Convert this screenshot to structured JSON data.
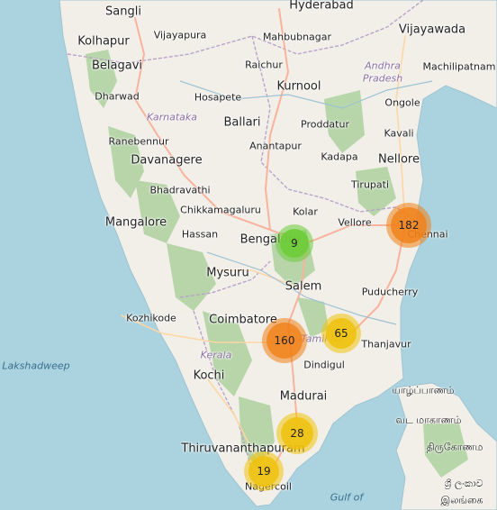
{
  "map": {
    "cities_large": [
      {
        "id": "sangli",
        "name": "Sangli"
      },
      {
        "id": "kolhapur",
        "name": "Kolhapur"
      },
      {
        "id": "belagavi",
        "name": "Belagavi"
      },
      {
        "id": "hyderabad",
        "name": "Hyderabad"
      },
      {
        "id": "vijayawada",
        "name": "Vijayawada"
      },
      {
        "id": "kurnool",
        "name": "Kurnool"
      },
      {
        "id": "ballari",
        "name": "Ballari"
      },
      {
        "id": "davanagere",
        "name": "Davanagere"
      },
      {
        "id": "nellore",
        "name": "Nellore"
      },
      {
        "id": "mangalore",
        "name": "Mangalore"
      },
      {
        "id": "bengaluru",
        "name": "Bengaluru"
      },
      {
        "id": "mysuru",
        "name": "Mysuru"
      },
      {
        "id": "salem",
        "name": "Salem"
      },
      {
        "id": "coimbatore",
        "name": "Coimbatore"
      },
      {
        "id": "kochi",
        "name": "Kochi"
      },
      {
        "id": "madurai",
        "name": "Madurai"
      },
      {
        "id": "thiruvananthapuram",
        "name": "Thiruvananthapuram"
      }
    ],
    "cities_small": [
      {
        "id": "vijayapura",
        "name": "Vijayapura"
      },
      {
        "id": "mahbubnagar",
        "name": "Mahbubnagar"
      },
      {
        "id": "machilipatnam",
        "name": "Machilipatnam"
      },
      {
        "id": "raichur",
        "name": "Raichur"
      },
      {
        "id": "dharwad",
        "name": "Dharwad"
      },
      {
        "id": "hosapete",
        "name": "Hosapete"
      },
      {
        "id": "proddatur",
        "name": "Proddatur"
      },
      {
        "id": "ongole",
        "name": "Ongole"
      },
      {
        "id": "ranebennur",
        "name": "Ranebennur"
      },
      {
        "id": "kavali",
        "name": "Kavali"
      },
      {
        "id": "anantapur",
        "name": "Anantapur"
      },
      {
        "id": "kadapa",
        "name": "Kadapa"
      },
      {
        "id": "tirupati",
        "name": "Tirupati"
      },
      {
        "id": "bhadravathi",
        "name": "Bhadravathi"
      },
      {
        "id": "chikkamagaluru",
        "name": "Chikkamagaluru"
      },
      {
        "id": "kolar",
        "name": "Kolar"
      },
      {
        "id": "hassan",
        "name": "Hassan"
      },
      {
        "id": "vellore",
        "name": "Vellore"
      },
      {
        "id": "chennai",
        "name": "Chennai"
      },
      {
        "id": "puducherry",
        "name": "Puducherry"
      },
      {
        "id": "kozhikode",
        "name": "Kozhikode"
      },
      {
        "id": "thanjavur",
        "name": "Thanjavur"
      },
      {
        "id": "dindigul",
        "name": "Dindigul"
      },
      {
        "id": "nagercoil",
        "name": "Nagercoil"
      }
    ],
    "regions": [
      {
        "id": "andhra",
        "name": "Andhra"
      },
      {
        "id": "pradesh",
        "name": "Pradesh"
      },
      {
        "id": "karnataka",
        "name": "Karnataka"
      },
      {
        "id": "kerala",
        "name": "Kerala"
      },
      {
        "id": "tamilnadu",
        "name": "Tamil Na"
      }
    ],
    "seas": [
      {
        "id": "lakshadweep",
        "name": "Lakshadweep"
      },
      {
        "id": "gulf",
        "name": "Gulf of"
      }
    ],
    "sri_lanka": [
      {
        "id": "sl-north",
        "name": "யாழ்ப்பாணம்"
      },
      {
        "id": "sl-province",
        "name": "வட மாகாணம்"
      },
      {
        "id": "sl-trinco",
        "name": "திருகோணம"
      },
      {
        "id": "sl-country1",
        "name": "ශ්‍රී ලංකාව"
      },
      {
        "id": "sl-country2",
        "name": "இலங்கை"
      }
    ],
    "clusters": [
      {
        "id": "bengaluru",
        "count": "9",
        "level": "green"
      },
      {
        "id": "chennai",
        "count": "182",
        "level": "orange"
      },
      {
        "id": "madurai-west",
        "count": "160",
        "level": "orange"
      },
      {
        "id": "thanjavur",
        "count": "65",
        "level": "yellow"
      },
      {
        "id": "tirunelveli",
        "count": "28",
        "level": "yellow"
      },
      {
        "id": "nagercoil",
        "count": "19",
        "level": "yellow"
      }
    ],
    "colors": {
      "sea": "#aad3df",
      "land": "#f2efe9",
      "forest": "#add19e",
      "road_major": "#f9b29c",
      "road_trunk": "#fcd6a4",
      "border": "#b9a3c9"
    }
  }
}
